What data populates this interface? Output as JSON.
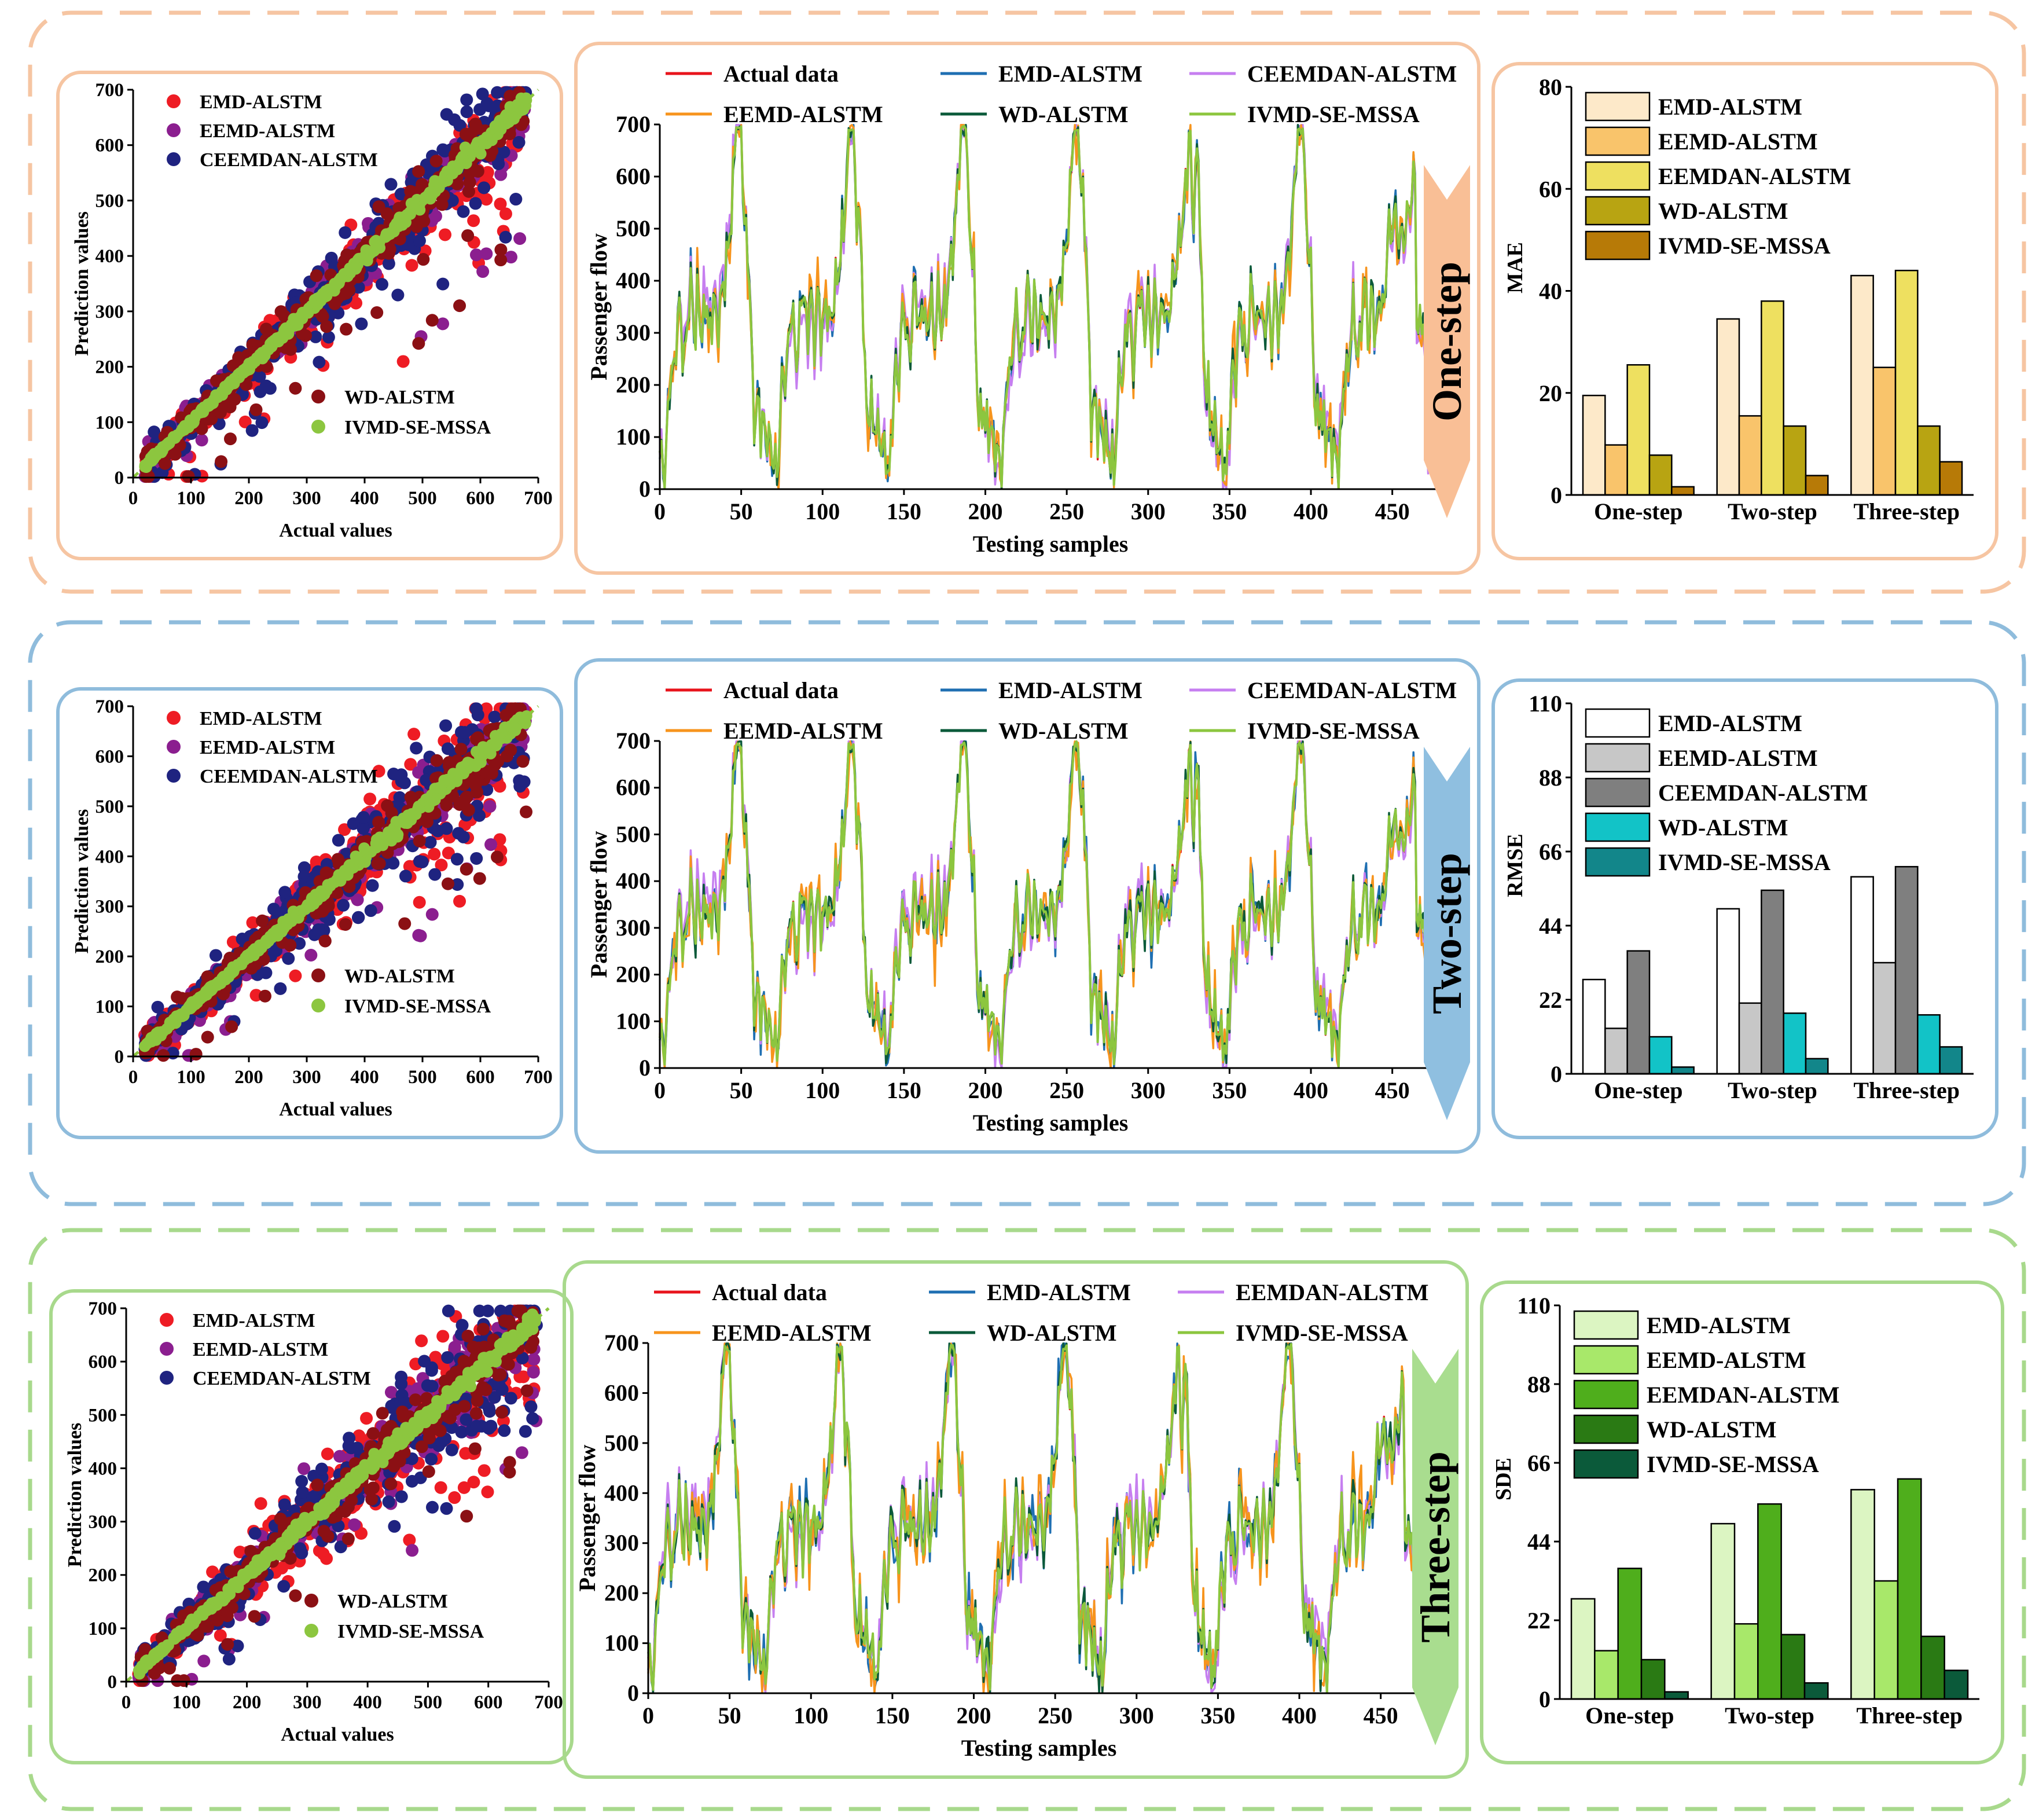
{
  "rows": [
    {
      "step_label": "One-step",
      "arrow_color": "#f9bf96",
      "frame_color": "#f6c5a2",
      "scatter": {
        "type": "scatter",
        "xlabel": "Actual values",
        "ylabel": "Prediction values",
        "xlim": [
          0,
          700
        ],
        "ylim": [
          0,
          700
        ],
        "xticks": [
          "0",
          "100",
          "200",
          "300",
          "400",
          "500",
          "600",
          "700"
        ],
        "yticks": [
          "0",
          "100",
          "200",
          "300",
          "400",
          "500",
          "600",
          "700"
        ],
        "legend_top": [
          "EMD-ALSTM",
          "EEMD-ALSTM",
          "CEEMDAN-ALSTM"
        ],
        "legend_bottom": [
          "WD-ALSTM",
          "IVMD-SE-MSSA"
        ],
        "spread": [
          0.07,
          0.05,
          0.09,
          0.035,
          0.01
        ]
      },
      "series_chart": {
        "type": "line",
        "xlabel": "Testing samples",
        "ylabel": "Passenger flow",
        "xlim": [
          0,
          480
        ],
        "ylim": [
          0,
          700
        ],
        "xticks": [
          "0",
          "50",
          "100",
          "150",
          "200",
          "250",
          "300",
          "350",
          "400",
          "450"
        ],
        "yticks": [
          "0",
          "100",
          "200",
          "300",
          "400",
          "500",
          "600",
          "700"
        ],
        "legend": [
          "Actual data",
          "EMD-ALSTM",
          "CEEMDAN-ALSTM",
          "EEMD-ALSTM",
          "WD-ALSTM",
          "IVMD-SE-MSSA"
        ],
        "noise": [
          0,
          14,
          10,
          22,
          9,
          3
        ]
      },
      "bar_chart": {
        "type": "bar",
        "ylabel": "MAE",
        "ylim": [
          0,
          80
        ],
        "yticks": [
          "0",
          "20",
          "40",
          "60",
          "80"
        ],
        "categories": [
          "One-step",
          "Two-step",
          "Three-step"
        ],
        "series": [
          {
            "name": "EMD-ALSTM",
            "values": [
              19.5,
              34.5,
              43
            ]
          },
          {
            "name": "EEMD-ALSTM",
            "values": [
              9.8,
              15.5,
              25
            ]
          },
          {
            "name": "EEMDAN-ALSTM",
            "values": [
              25.5,
              38,
              44
            ]
          },
          {
            "name": "WD-ALSTM",
            "values": [
              7.8,
              13.5,
              13.5
            ]
          },
          {
            "name": "IVMD-SE-MSSA",
            "values": [
              1.6,
              3.8,
              6.5
            ]
          }
        ]
      }
    },
    {
      "step_label": "Two-step",
      "arrow_color": "#8fbfe0",
      "frame_color": "#8fbcdc",
      "scatter": {
        "type": "scatter",
        "xlabel": "Actual values",
        "ylabel": "Prediction values",
        "xlim": [
          0,
          700
        ],
        "ylim": [
          0,
          700
        ],
        "xticks": [
          "0",
          "100",
          "200",
          "300",
          "400",
          "500",
          "600",
          "700"
        ],
        "yticks": [
          "0",
          "100",
          "200",
          "300",
          "400",
          "500",
          "600",
          "700"
        ],
        "legend_top": [
          "EMD-ALSTM",
          "EEMD-ALSTM",
          "CEEMDAN-ALSTM"
        ],
        "legend_bottom": [
          "WD-ALSTM",
          "IVMD-SE-MSSA"
        ],
        "spread": [
          0.12,
          0.06,
          0.12,
          0.045,
          0.012
        ]
      },
      "series_chart": {
        "type": "line",
        "xlabel": "Testing samples",
        "ylabel": "Passenger flow",
        "xlim": [
          0,
          480
        ],
        "ylim": [
          0,
          700
        ],
        "xticks": [
          "0",
          "50",
          "100",
          "150",
          "200",
          "250",
          "300",
          "350",
          "400",
          "450"
        ],
        "yticks": [
          "0",
          "100",
          "200",
          "300",
          "400",
          "500",
          "600",
          "700"
        ],
        "legend": [
          "Actual data",
          "EMD-ALSTM",
          "CEEMDAN-ALSTM",
          "EEMD-ALSTM",
          "WD-ALSTM",
          "IVMD-SE-MSSA"
        ],
        "noise": [
          0,
          20,
          14,
          28,
          12,
          4
        ]
      },
      "bar_chart": {
        "type": "bar",
        "ylabel": "RMSE",
        "ylim": [
          0,
          110
        ],
        "yticks": [
          "0",
          "22",
          "44",
          "66",
          "88",
          "110"
        ],
        "categories": [
          "One-step",
          "Two-step",
          "Three-step"
        ],
        "series": [
          {
            "name": "EMD-ALSTM",
            "values": [
              28,
              49,
              58.5
            ]
          },
          {
            "name": "EEMD-ALSTM",
            "values": [
              13.5,
              21,
              33
            ]
          },
          {
            "name": "CEEMDAN-ALSTM",
            "values": [
              36.5,
              54.5,
              61.5
            ]
          },
          {
            "name": "WD-ALSTM",
            "values": [
              11,
              18,
              17.5
            ]
          },
          {
            "name": "IVMD-SE-MSSA",
            "values": [
              2,
              4.5,
              8
            ]
          }
        ]
      }
    },
    {
      "step_label": "Three-step",
      "arrow_color": "#a9dd8f",
      "frame_color": "#a8d98c",
      "scatter": {
        "type": "scatter",
        "xlabel": "Actual values",
        "ylabel": "Prediction values",
        "xlim": [
          0,
          700
        ],
        "ylim": [
          0,
          700
        ],
        "xticks": [
          "0",
          "100",
          "200",
          "300",
          "400",
          "500",
          "600",
          "700"
        ],
        "yticks": [
          "0",
          "100",
          "200",
          "300",
          "400",
          "500",
          "600",
          "700"
        ],
        "legend_top": [
          "EMD-ALSTM",
          "EEMD-ALSTM",
          "CEEMDAN-ALSTM"
        ],
        "legend_bottom": [
          "WD-ALSTM",
          "IVMD-SE-MSSA"
        ],
        "spread": [
          0.14,
          0.08,
          0.14,
          0.05,
          0.015
        ]
      },
      "series_chart": {
        "type": "line",
        "xlabel": "Testing samples",
        "ylabel": "Passenger flow",
        "xlim": [
          0,
          480
        ],
        "ylim": [
          0,
          700
        ],
        "xticks": [
          "0",
          "50",
          "100",
          "150",
          "200",
          "250",
          "300",
          "350",
          "400",
          "450"
        ],
        "yticks": [
          "0",
          "100",
          "200",
          "300",
          "400",
          "500",
          "600",
          "700"
        ],
        "legend": [
          "Actual data",
          "EMD-ALSTM",
          "EEMDAN-ALSTM",
          "EEMD-ALSTM",
          "WD-ALSTM",
          "IVMD-SE-MSSA"
        ],
        "noise": [
          0,
          24,
          18,
          30,
          14,
          5
        ]
      },
      "bar_chart": {
        "type": "bar",
        "ylabel": "SDE",
        "ylim": [
          0,
          110
        ],
        "yticks": [
          "0",
          "22",
          "44",
          "66",
          "88",
          "110"
        ],
        "categories": [
          "One-step",
          "Two-step",
          "Three-step"
        ],
        "series": [
          {
            "name": "EMD-ALSTM",
            "values": [
              28,
              49,
              58.5
            ]
          },
          {
            "name": "EEMD-ALSTM",
            "values": [
              13.5,
              21,
              33
            ]
          },
          {
            "name": "EEMDAN-ALSTM",
            "values": [
              36.5,
              54.5,
              61.5
            ]
          },
          {
            "name": "WD-ALSTM",
            "values": [
              11,
              18,
              17.5
            ]
          },
          {
            "name": "IVMD-SE-MSSA",
            "values": [
              2,
              4.5,
              8
            ]
          }
        ]
      }
    }
  ],
  "colors": {
    "scatter": [
      "#ee1c24",
      "#8b1e8f",
      "#1f2380",
      "#8b1014",
      "#8cc63f"
    ],
    "lines": [
      "#e8141c",
      "#1f6fb2",
      "#c67ff0",
      "#f7941d",
      "#0b5a3a",
      "#8cc63f"
    ],
    "bars": [
      [
        "#fde9c9",
        "#f9c46b",
        "#eee060",
        "#b8a412",
        "#b77a07"
      ],
      [
        "#ffffff",
        "#c7c7c7",
        "#7f7f7f",
        "#12c3c7",
        "#12868a"
      ],
      [
        "#dcf5c2",
        "#a8e86a",
        "#4fae1c",
        "#2a7a14",
        "#0b5a3a"
      ]
    ]
  }
}
